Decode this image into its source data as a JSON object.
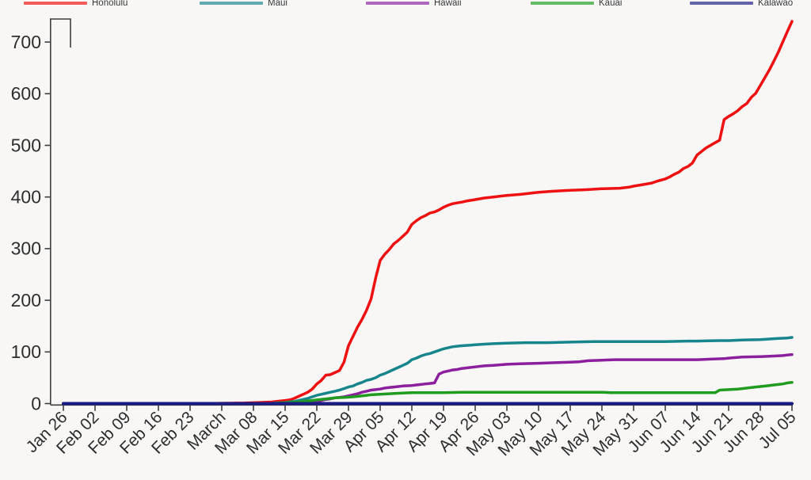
{
  "chart_data": {
    "type": "line",
    "title": "",
    "subtitle": "",
    "xlabel": "",
    "ylabel": "",
    "grid": false,
    "legend_position": "top",
    "x_axis": {
      "tick_labels": [
        "Jan 26",
        "Feb 02",
        "Feb 09",
        "Feb 16",
        "Feb 23",
        "March",
        "Mar 08",
        "Mar 15",
        "Mar 22",
        "Mar 29",
        "Apr 05",
        "Apr 12",
        "Apr 19",
        "Apr 26",
        "May 03",
        "May 10",
        "May 17",
        "May 24",
        "May 31",
        "Jun 07",
        "Jun 14",
        "Jun 21",
        "Jun 28",
        "Jul 05"
      ],
      "tick_day_offsets": [
        0,
        7,
        14,
        21,
        28,
        35,
        42,
        49,
        56,
        63,
        70,
        77,
        84,
        91,
        98,
        105,
        112,
        119,
        126,
        133,
        140,
        147,
        154,
        161
      ],
      "label_rotation_deg": 45,
      "range_days": [
        0,
        161
      ]
    },
    "y_axis": {
      "ticks": [
        0,
        100,
        200,
        300,
        400,
        500,
        600,
        700
      ],
      "range": [
        0,
        760
      ]
    },
    "series": [
      {
        "name": "Honolulu",
        "color": "#ee1111",
        "stroke_width": 3.5,
        "points": [
          [
            0,
            0
          ],
          [
            30,
            0
          ],
          [
            40,
            1
          ],
          [
            43,
            2
          ],
          [
            46,
            3
          ],
          [
            48,
            5
          ],
          [
            49,
            6
          ],
          [
            50,
            7
          ],
          [
            51,
            10
          ],
          [
            52,
            14
          ],
          [
            53,
            18
          ],
          [
            54,
            22
          ],
          [
            55,
            28
          ],
          [
            56,
            38
          ],
          [
            57,
            45
          ],
          [
            58,
            55
          ],
          [
            59,
            56
          ],
          [
            60,
            60
          ],
          [
            61,
            64
          ],
          [
            62,
            80
          ],
          [
            63,
            112
          ],
          [
            64,
            130
          ],
          [
            65,
            148
          ],
          [
            66,
            163
          ],
          [
            67,
            181
          ],
          [
            68,
            203
          ],
          [
            69,
            243
          ],
          [
            70,
            277
          ],
          [
            71,
            289
          ],
          [
            72,
            298
          ],
          [
            73,
            309
          ],
          [
            74,
            316
          ],
          [
            75,
            324
          ],
          [
            76,
            332
          ],
          [
            77,
            347
          ],
          [
            78,
            354
          ],
          [
            79,
            360
          ],
          [
            80,
            364
          ],
          [
            81,
            369
          ],
          [
            82,
            371
          ],
          [
            83,
            375
          ],
          [
            84,
            380
          ],
          [
            85,
            384
          ],
          [
            86,
            387
          ],
          [
            88,
            390
          ],
          [
            89,
            392
          ],
          [
            91,
            395
          ],
          [
            93,
            398
          ],
          [
            95,
            400
          ],
          [
            98,
            403
          ],
          [
            101,
            405
          ],
          [
            105,
            409
          ],
          [
            108,
            411
          ],
          [
            112,
            413
          ],
          [
            115,
            414
          ],
          [
            119,
            416
          ],
          [
            123,
            417
          ],
          [
            125,
            419
          ],
          [
            126,
            421
          ],
          [
            128,
            424
          ],
          [
            130,
            427
          ],
          [
            131,
            430
          ],
          [
            133,
            435
          ],
          [
            134,
            439
          ],
          [
            135,
            444
          ],
          [
            136,
            448
          ],
          [
            137,
            455
          ],
          [
            138,
            459
          ],
          [
            139,
            466
          ],
          [
            140,
            481
          ],
          [
            141,
            488
          ],
          [
            142,
            495
          ],
          [
            143,
            500
          ],
          [
            144,
            505
          ],
          [
            145,
            510
          ],
          [
            146,
            550
          ],
          [
            147,
            556
          ],
          [
            148,
            561
          ],
          [
            149,
            567
          ],
          [
            150,
            575
          ],
          [
            151,
            581
          ],
          [
            152,
            593
          ],
          [
            153,
            601
          ],
          [
            154,
            616
          ],
          [
            155,
            631
          ],
          [
            156,
            646
          ],
          [
            157,
            663
          ],
          [
            158,
            681
          ],
          [
            159,
            701
          ],
          [
            160,
            721
          ],
          [
            161,
            740
          ]
        ]
      },
      {
        "name": "Maui",
        "color": "#17868c",
        "stroke_width": 3.5,
        "points": [
          [
            0,
            0
          ],
          [
            45,
            0
          ],
          [
            47,
            1
          ],
          [
            49,
            2
          ],
          [
            50,
            3
          ],
          [
            51,
            4
          ],
          [
            52,
            6
          ],
          [
            53,
            8
          ],
          [
            54,
            10
          ],
          [
            55,
            13
          ],
          [
            56,
            16
          ],
          [
            57,
            18
          ],
          [
            58,
            20
          ],
          [
            59,
            22
          ],
          [
            60,
            24
          ],
          [
            61,
            26
          ],
          [
            62,
            29
          ],
          [
            63,
            32
          ],
          [
            64,
            34
          ],
          [
            65,
            38
          ],
          [
            66,
            41
          ],
          [
            67,
            45
          ],
          [
            68,
            47
          ],
          [
            69,
            50
          ],
          [
            70,
            55
          ],
          [
            71,
            58
          ],
          [
            72,
            62
          ],
          [
            73,
            66
          ],
          [
            74,
            70
          ],
          [
            75,
            74
          ],
          [
            76,
            78
          ],
          [
            77,
            85
          ],
          [
            78,
            88
          ],
          [
            79,
            92
          ],
          [
            80,
            95
          ],
          [
            81,
            97
          ],
          [
            82,
            100
          ],
          [
            83,
            103
          ],
          [
            84,
            106
          ],
          [
            85,
            108
          ],
          [
            86,
            110
          ],
          [
            87,
            111
          ],
          [
            88,
            112
          ],
          [
            90,
            113
          ],
          [
            91,
            114
          ],
          [
            93,
            115
          ],
          [
            95,
            116
          ],
          [
            98,
            117
          ],
          [
            102,
            118
          ],
          [
            107,
            118
          ],
          [
            112,
            119
          ],
          [
            117,
            120
          ],
          [
            126,
            120
          ],
          [
            133,
            120
          ],
          [
            138,
            121
          ],
          [
            140,
            121
          ],
          [
            145,
            122
          ],
          [
            147,
            122
          ],
          [
            150,
            123
          ],
          [
            154,
            124
          ],
          [
            156,
            125
          ],
          [
            158,
            126
          ],
          [
            160,
            127
          ],
          [
            161,
            128
          ]
        ]
      },
      {
        "name": "Hawaii",
        "color": "#8c1f9e",
        "stroke_width": 3.5,
        "points": [
          [
            0,
            0
          ],
          [
            48,
            0
          ],
          [
            50,
            1
          ],
          [
            52,
            2
          ],
          [
            54,
            4
          ],
          [
            56,
            5
          ],
          [
            57,
            6
          ],
          [
            58,
            8
          ],
          [
            59,
            9
          ],
          [
            60,
            11
          ],
          [
            61,
            12
          ],
          [
            62,
            13
          ],
          [
            63,
            15
          ],
          [
            64,
            17
          ],
          [
            65,
            19
          ],
          [
            66,
            22
          ],
          [
            67,
            24
          ],
          [
            68,
            26
          ],
          [
            69,
            27
          ],
          [
            70,
            28
          ],
          [
            71,
            30
          ],
          [
            72,
            31
          ],
          [
            73,
            32
          ],
          [
            74,
            33
          ],
          [
            75,
            34
          ],
          [
            77,
            35
          ],
          [
            78,
            36
          ],
          [
            79,
            37
          ],
          [
            80,
            38
          ],
          [
            81,
            39
          ],
          [
            82,
            40
          ],
          [
            83,
            57
          ],
          [
            84,
            61
          ],
          [
            85,
            63
          ],
          [
            86,
            65
          ],
          [
            87,
            66
          ],
          [
            88,
            68
          ],
          [
            90,
            70
          ],
          [
            91,
            71
          ],
          [
            93,
            73
          ],
          [
            95,
            74
          ],
          [
            98,
            76
          ],
          [
            101,
            77
          ],
          [
            105,
            78
          ],
          [
            108,
            79
          ],
          [
            112,
            80
          ],
          [
            114,
            81
          ],
          [
            116,
            83
          ],
          [
            119,
            84
          ],
          [
            122,
            85
          ],
          [
            133,
            85
          ],
          [
            140,
            85
          ],
          [
            143,
            86
          ],
          [
            146,
            87
          ],
          [
            147,
            88
          ],
          [
            150,
            90
          ],
          [
            154,
            91
          ],
          [
            157,
            92
          ],
          [
            159,
            93
          ],
          [
            160,
            94
          ],
          [
            161,
            95
          ]
        ]
      },
      {
        "name": "Kauai",
        "color": "#1f9c1f",
        "stroke_width": 3.5,
        "points": [
          [
            0,
            0
          ],
          [
            46,
            0
          ],
          [
            48,
            1
          ],
          [
            50,
            2
          ],
          [
            52,
            3
          ],
          [
            54,
            5
          ],
          [
            56,
            7
          ],
          [
            58,
            9
          ],
          [
            60,
            11
          ],
          [
            62,
            12
          ],
          [
            64,
            13
          ],
          [
            65,
            14
          ],
          [
            67,
            16
          ],
          [
            68,
            17
          ],
          [
            70,
            18
          ],
          [
            72,
            19
          ],
          [
            74,
            20
          ],
          [
            77,
            21
          ],
          [
            84,
            21
          ],
          [
            88,
            22
          ],
          [
            112,
            22
          ],
          [
            119,
            22
          ],
          [
            121,
            21
          ],
          [
            140,
            21
          ],
          [
            144,
            21
          ],
          [
            145,
            26
          ],
          [
            147,
            27
          ],
          [
            149,
            28
          ],
          [
            150,
            29
          ],
          [
            152,
            31
          ],
          [
            154,
            33
          ],
          [
            156,
            35
          ],
          [
            157,
            36
          ],
          [
            158,
            37
          ],
          [
            159,
            38
          ],
          [
            160,
            40
          ],
          [
            161,
            41
          ]
        ]
      },
      {
        "name": "Kalawao",
        "color": "#1c1c85",
        "stroke_width": 4,
        "points": [
          [
            0,
            0
          ],
          [
            161,
            0
          ]
        ]
      }
    ]
  },
  "legend": {
    "items": [
      {
        "label": "Honolulu"
      },
      {
        "label": "Maui"
      },
      {
        "label": "Hawaii"
      },
      {
        "label": "Kauai"
      },
      {
        "label": "Kalawao"
      }
    ]
  },
  "colors": {
    "background": "#f8f7f6",
    "axis": "#3f3f3f",
    "tick_label": "#2e2e2e",
    "legend_text": "#3a3a3a"
  }
}
